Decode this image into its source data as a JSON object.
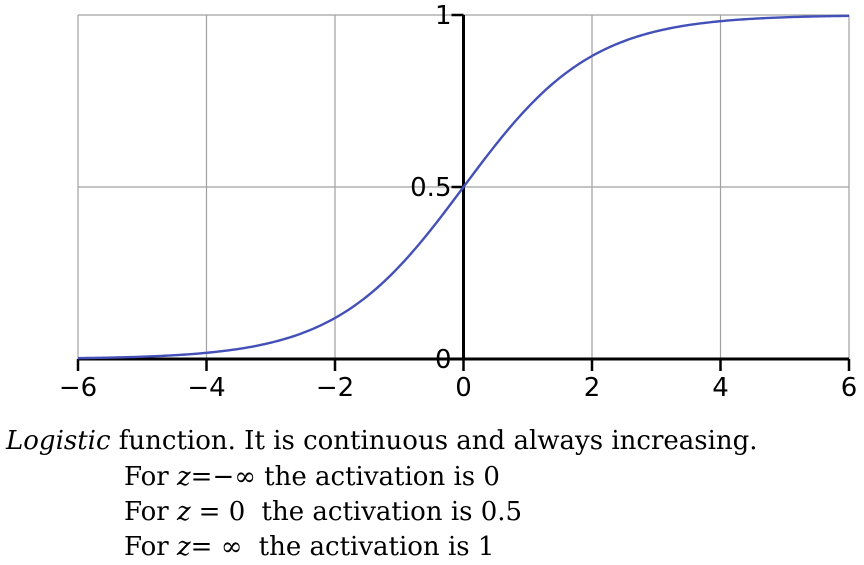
{
  "chart_data": {
    "type": "line",
    "function": "logistic",
    "series": [
      {
        "name": "logistic",
        "color": "#4350b8",
        "x": [
          -6,
          -5,
          -4,
          -3,
          -2,
          -1,
          -0.5,
          0,
          0.5,
          1,
          2,
          3,
          4,
          5,
          6
        ],
        "y": [
          0.0025,
          0.0067,
          0.018,
          0.047,
          0.119,
          0.269,
          0.378,
          0.5,
          0.622,
          0.731,
          0.881,
          0.953,
          0.982,
          0.9933,
          0.9975
        ]
      }
    ],
    "xlim": [
      -6,
      6
    ],
    "ylim": [
      0,
      1
    ],
    "x_ticks": [
      -6,
      -4,
      -2,
      0,
      2,
      4,
      6
    ],
    "x_tick_labels": [
      "−6",
      "−4",
      "−2",
      "0",
      "2",
      "4",
      "6"
    ],
    "y_ticks": [
      0,
      0.5,
      1
    ],
    "y_tick_labels": [
      "0",
      "0.5",
      "1"
    ],
    "grid": true,
    "title": "",
    "xlabel": "",
    "ylabel": ""
  },
  "caption": {
    "main_emph": "Logistic",
    "main_rest": " function. It is continuous and always increasing.",
    "lines": [
      {
        "prefix": "For ",
        "var": "z",
        "cond": "=−∞",
        "rest": "the activation is 0"
      },
      {
        "prefix": "For ",
        "var": "z",
        "cond": "= 0",
        "rest": "the activation is 0.5"
      },
      {
        "prefix": "For ",
        "var": "z",
        "cond": "= ∞",
        "rest": "the activation is 1"
      }
    ]
  },
  "colors": {
    "curve": "#4350b8",
    "grid": "#a0a0a0",
    "axis": "#000000"
  }
}
